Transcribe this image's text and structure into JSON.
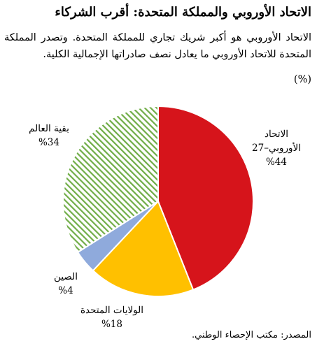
{
  "title": "الاتحاد الأوروبي والمملكة المتحدة: أقرب الشركاء",
  "subtitle": "الاتحاد الأوروبي هو أكبر شريك تجاري للمملكة المتحدة. وتصدر المملكة المتحدة للاتحاد الأوروبي ما يعادل نصف صادراتها الإجمالية الكلية.",
  "unit": "(%)",
  "source": "المصدر: مكتب الإحصاء الوطني.",
  "colors": {
    "eu": "#d6141b",
    "us": "#ffc000",
    "china": "#8faadc",
    "rest": "#70ad47"
  },
  "chart_data": {
    "type": "pie",
    "start": "12 o'clock, clockwise",
    "slices": [
      {
        "label": [
          "الاتحاد",
          "الأوروبي–27"
        ],
        "value": 44,
        "value_label": "%44",
        "fill": "solid",
        "color": "#d6141b"
      },
      {
        "label": [
          "الولايات المتحدة"
        ],
        "value": 18,
        "value_label": "%18",
        "fill": "solid",
        "color": "#ffc000"
      },
      {
        "label": [
          "الصين"
        ],
        "value": 4,
        "value_label": "%4",
        "fill": "solid",
        "color": "#8faadc"
      },
      {
        "label": [
          "بقية العالم"
        ],
        "value": 34,
        "value_label": "%34",
        "fill": "hatched",
        "color": "#70ad47"
      }
    ]
  }
}
